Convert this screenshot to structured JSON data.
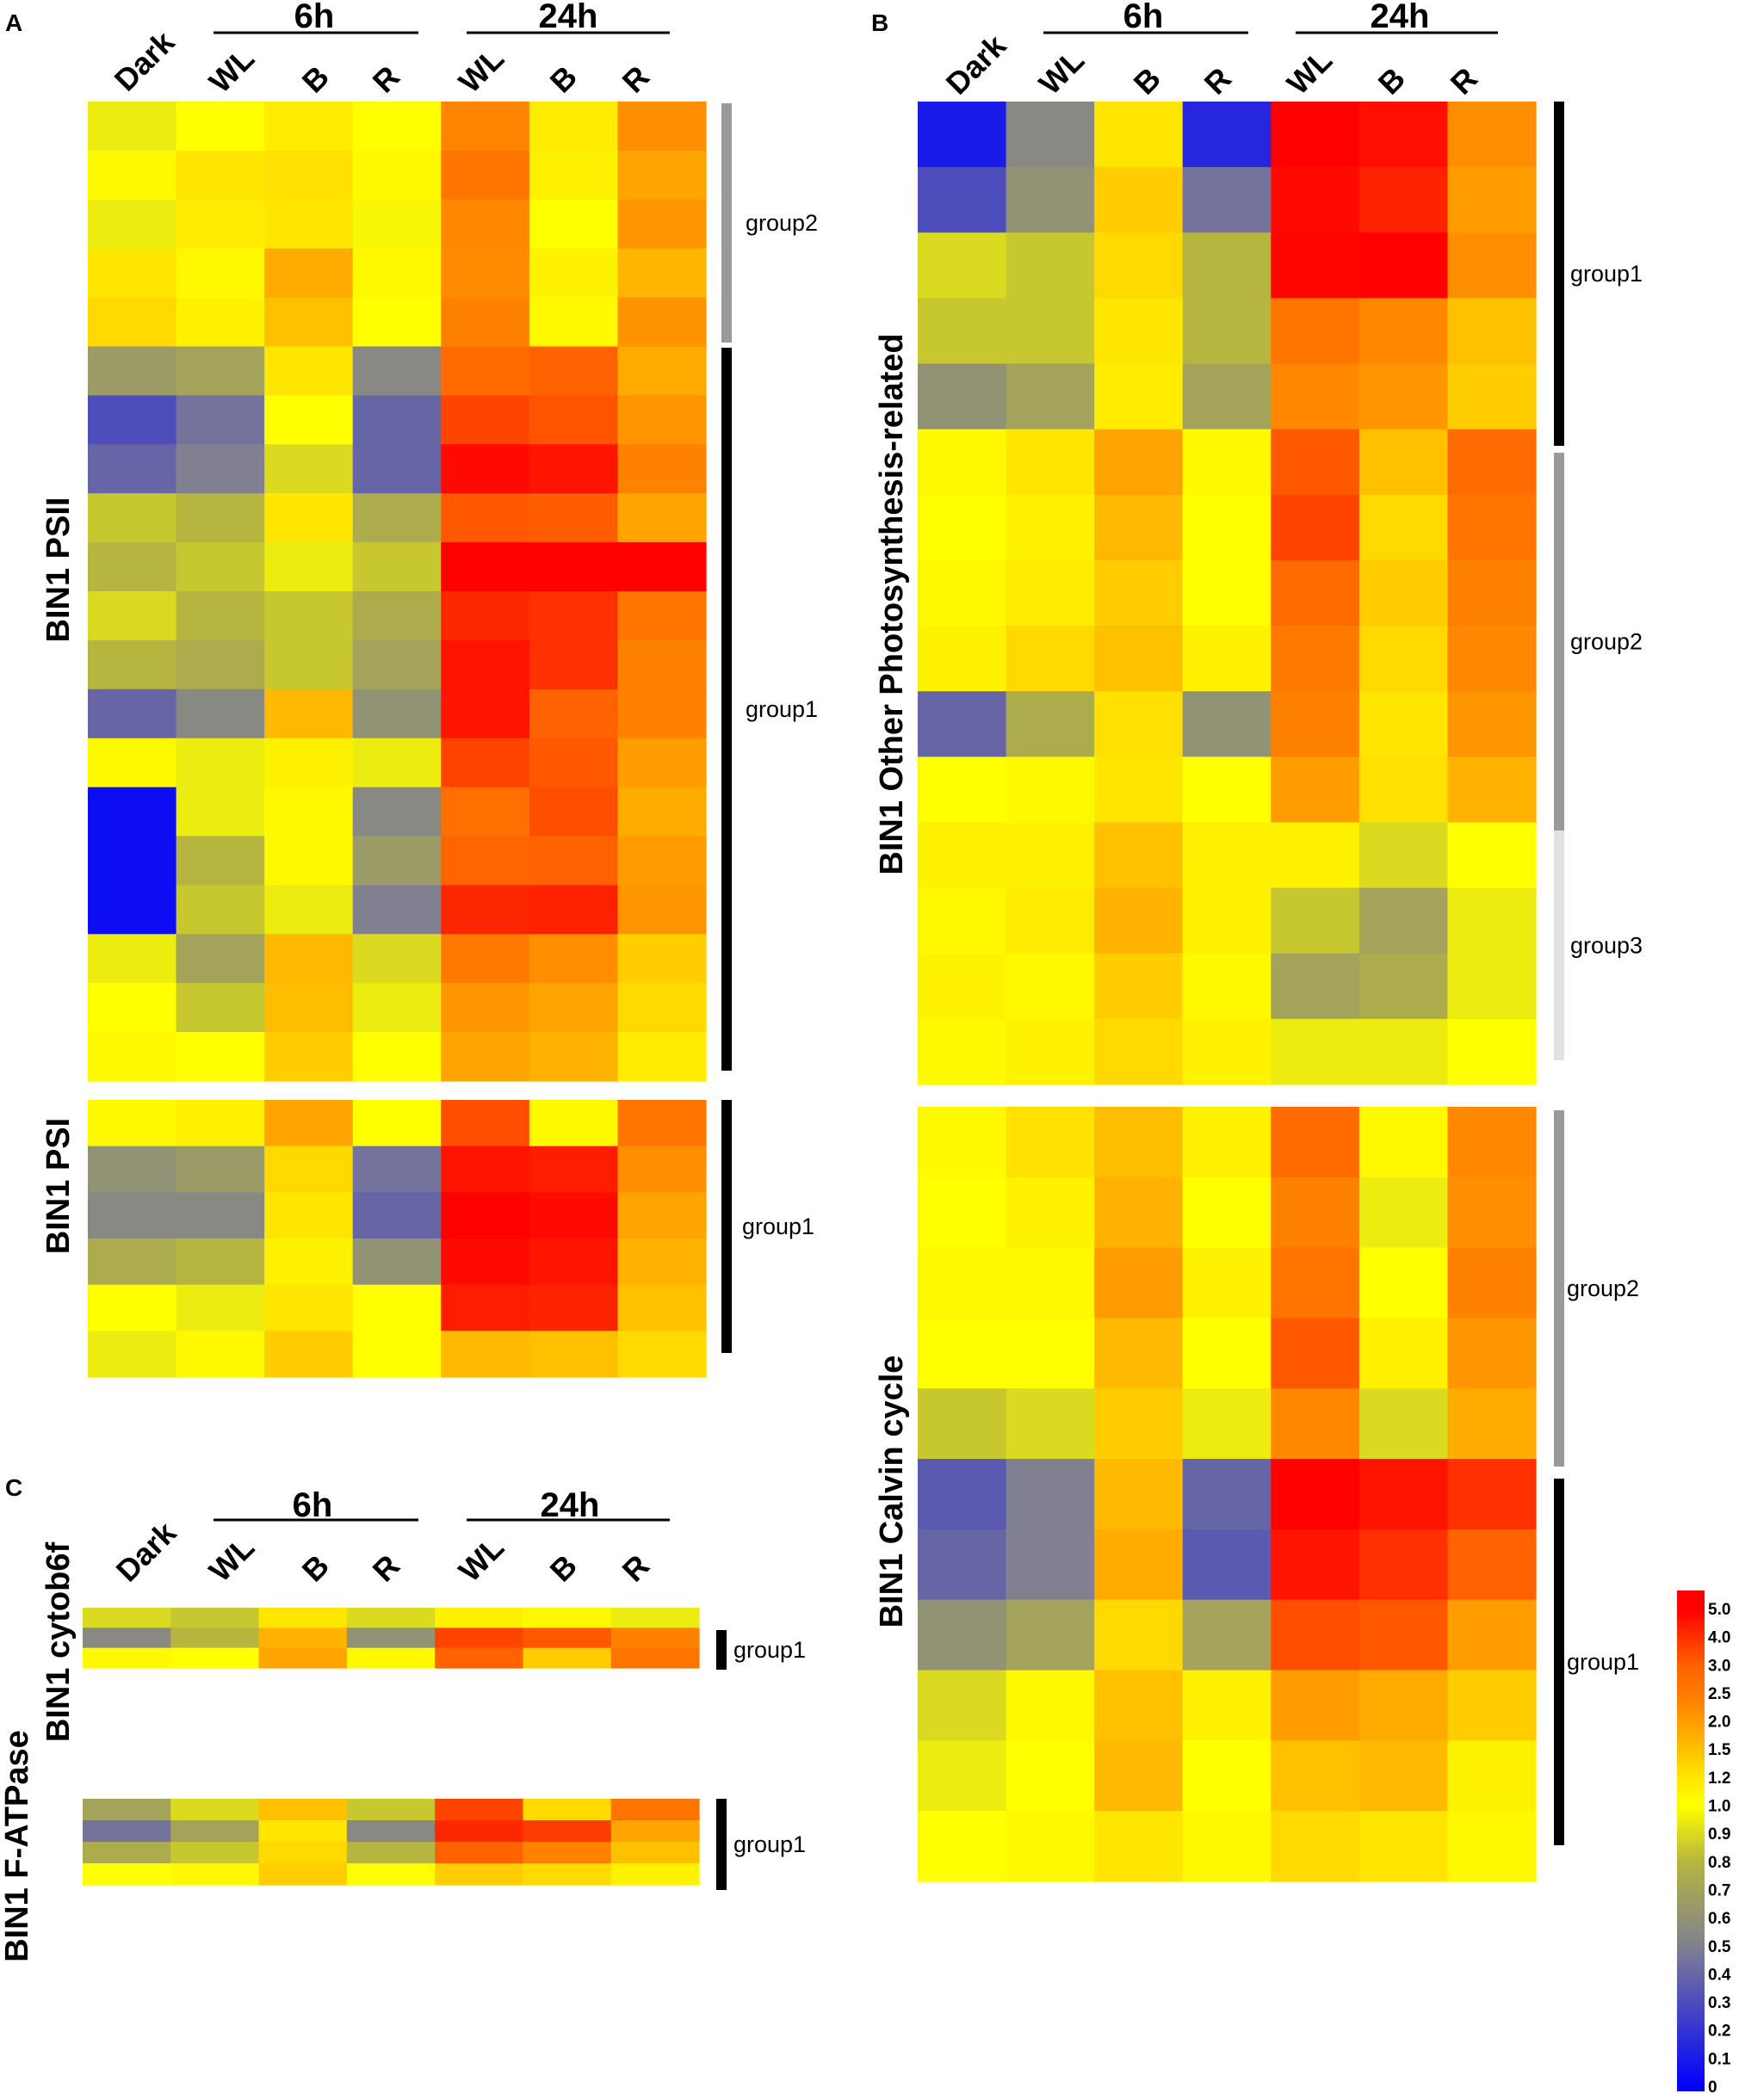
{
  "chart_data": {
    "type": "heatmap",
    "panel_letters": [
      "A",
      "B",
      "C"
    ],
    "columns": [
      "Dark",
      "WL",
      "B",
      "R",
      "WL",
      "B",
      "R"
    ],
    "time_groups": [
      {
        "label": "6h",
        "columns": [
          "WL",
          "B",
          "R"
        ]
      },
      {
        "label": "24h",
        "columns": [
          "WL",
          "B",
          "R"
        ]
      }
    ],
    "heatmaps": [
      {
        "panel": "A",
        "title": "BIN1 PSII",
        "groups": [
          {
            "label": "group2",
            "bar": "gray",
            "bands": [
              [
                0.95,
                1.0,
                1.15,
                1.0,
                2.35,
                1.15,
                2.2
              ],
              [
                1.05,
                1.2,
                1.25,
                1.05,
                2.6,
                1.1,
                1.9
              ],
              [
                0.95,
                1.15,
                1.2,
                0.98,
                2.3,
                1.0,
                2.1
              ],
              [
                1.2,
                1.05,
                1.8,
                1.05,
                2.25,
                1.1,
                1.65
              ],
              [
                1.3,
                1.1,
                1.5,
                1.0,
                2.4,
                1.05,
                2.15
              ]
            ]
          },
          {
            "label": "group1",
            "bar": "black",
            "bands": [
              [
                0.65,
                0.7,
                1.2,
                0.55,
                2.8,
                3.0,
                1.8
              ],
              [
                0.3,
                0.45,
                1.0,
                0.4,
                3.6,
                3.3,
                2.1
              ],
              [
                0.4,
                0.5,
                0.9,
                0.4,
                4.8,
                4.6,
                2.4
              ],
              [
                0.85,
                0.8,
                1.2,
                0.75,
                3.2,
                3.1,
                1.9
              ],
              [
                0.8,
                0.85,
                0.95,
                0.85,
                5.0,
                5.0,
                5.0
              ],
              [
                0.9,
                0.8,
                0.85,
                0.75,
                4.2,
                4.0,
                2.6
              ],
              [
                0.8,
                0.75,
                0.85,
                0.7,
                4.6,
                4.0,
                2.4
              ],
              [
                0.4,
                0.55,
                1.6,
                0.6,
                4.6,
                3.0,
                2.4
              ],
              [
                1.05,
                0.95,
                1.1,
                0.95,
                3.6,
                3.2,
                2.0
              ],
              [
                0.05,
                0.95,
                1.05,
                0.55,
                2.7,
                3.4,
                1.8
              ],
              [
                0.05,
                0.8,
                1.05,
                0.65,
                2.9,
                3.0,
                2.0
              ],
              [
                0.05,
                0.85,
                0.95,
                0.5,
                4.2,
                4.3,
                2.1
              ],
              [
                0.95,
                0.7,
                1.6,
                0.9,
                2.5,
                2.2,
                1.4
              ],
              [
                1.0,
                0.85,
                1.55,
                0.95,
                2.1,
                1.9,
                1.3
              ],
              [
                1.05,
                1.0,
                1.4,
                1.0,
                1.9,
                1.7,
                1.15
              ]
            ]
          }
        ]
      },
      {
        "panel": "A",
        "title": "BIN1 PSI",
        "groups": [
          {
            "label": "group1",
            "bar": "black",
            "bands": [
              [
                1.05,
                1.1,
                1.9,
                1.0,
                3.4,
                1.05,
                2.6
              ],
              [
                0.6,
                0.65,
                1.3,
                0.45,
                4.6,
                4.4,
                2.2
              ],
              [
                0.55,
                0.55,
                1.2,
                0.4,
                5.0,
                4.8,
                1.9
              ],
              [
                0.75,
                0.8,
                1.1,
                0.6,
                4.8,
                4.6,
                1.7
              ],
              [
                1.0,
                0.95,
                1.2,
                1.0,
                4.4,
                4.3,
                1.5
              ],
              [
                0.95,
                1.05,
                1.4,
                1.0,
                1.6,
                1.5,
                1.3
              ]
            ]
          }
        ]
      },
      {
        "panel": "B",
        "title": "BIN1 Other Photosynthesis-related",
        "groups": [
          {
            "label": "group1",
            "bar": "black",
            "bands": [
              [
                0.1,
                0.55,
                1.2,
                0.15,
                5.0,
                4.7,
                2.2
              ],
              [
                0.3,
                0.6,
                1.4,
                0.45,
                4.8,
                4.3,
                2.0
              ],
              [
                0.9,
                0.85,
                1.3,
                0.8,
                4.9,
                5.0,
                2.2
              ],
              [
                0.85,
                0.85,
                1.2,
                0.8,
                2.6,
                2.3,
                1.5
              ],
              [
                0.6,
                0.7,
                1.15,
                0.7,
                2.3,
                2.1,
                1.4
              ]
            ]
          },
          {
            "label": "group2",
            "bar": "gray",
            "bands": [
              [
                1.05,
                1.2,
                1.9,
                1.05,
                3.2,
                1.5,
                2.8
              ],
              [
                1.0,
                1.1,
                1.6,
                1.0,
                3.6,
                1.3,
                2.6
              ],
              [
                1.05,
                1.15,
                1.4,
                1.0,
                2.8,
                1.4,
                2.4
              ],
              [
                1.1,
                1.3,
                1.5,
                1.1,
                2.5,
                1.3,
                2.3
              ],
              [
                0.4,
                0.75,
                1.25,
                0.6,
                2.4,
                1.2,
                2.1
              ],
              [
                1.0,
                1.05,
                1.2,
                1.0,
                2.0,
                1.25,
                1.7
              ]
            ]
          },
          {
            "label": "group3",
            "bar": "light",
            "bands": [
              [
                1.1,
                1.1,
                1.5,
                1.1,
                1.1,
                0.9,
                1.0
              ],
              [
                1.05,
                1.15,
                1.7,
                1.1,
                0.85,
                0.7,
                0.95
              ],
              [
                1.1,
                1.05,
                1.4,
                1.05,
                0.7,
                0.75,
                0.95
              ],
              [
                1.05,
                1.1,
                1.3,
                1.1,
                0.95,
                0.95,
                1.0
              ]
            ]
          }
        ]
      },
      {
        "panel": "B",
        "title": "BIN1 Calvin cycle",
        "groups": [
          {
            "label": "group2",
            "bar": "gray",
            "bands": [
              [
                1.05,
                1.25,
                1.55,
                1.1,
                2.8,
                1.05,
                2.3
              ],
              [
                1.0,
                1.1,
                1.7,
                1.0,
                2.4,
                0.95,
                2.2
              ],
              [
                1.05,
                1.05,
                2.0,
                1.1,
                2.6,
                1.0,
                2.4
              ],
              [
                1.0,
                1.0,
                1.6,
                1.0,
                3.2,
                1.1,
                2.1
              ],
              [
                0.85,
                0.9,
                1.4,
                0.95,
                2.3,
                0.9,
                1.8
              ]
            ]
          },
          {
            "label": "group1",
            "bar": "black",
            "bands": [
              [
                0.35,
                0.5,
                1.6,
                0.4,
                5.0,
                4.6,
                4.0
              ],
              [
                0.4,
                0.5,
                1.8,
                0.35,
                4.6,
                4.0,
                3.0
              ],
              [
                0.6,
                0.7,
                1.3,
                0.7,
                3.4,
                3.2,
                2.0
              ],
              [
                0.9,
                1.05,
                1.5,
                1.1,
                2.0,
                1.8,
                1.4
              ],
              [
                0.95,
                1.0,
                1.6,
                1.0,
                1.5,
                1.6,
                1.1
              ],
              [
                1.0,
                1.05,
                1.2,
                1.05,
                1.3,
                1.2,
                1.05
              ]
            ]
          }
        ]
      },
      {
        "panel": "C",
        "title": "BIN1 cytob6f",
        "groups": [
          {
            "label": "group1",
            "bar": "black",
            "bands": [
              [
                0.9,
                0.85,
                1.2,
                0.9,
                1.1,
                1.05,
                0.95
              ],
              [
                0.55,
                0.8,
                1.7,
                0.6,
                3.6,
                3.2,
                2.4
              ],
              [
                1.05,
                1.0,
                1.9,
                1.05,
                3.0,
                1.4,
                2.6
              ]
            ]
          }
        ]
      },
      {
        "panel": "C",
        "title": "BIN1 F-ATPase",
        "groups": [
          {
            "label": "group1",
            "bar": "black",
            "bands": [
              [
                0.7,
                0.9,
                1.5,
                0.85,
                3.6,
                1.3,
                2.6
              ],
              [
                0.45,
                0.7,
                1.2,
                0.55,
                4.2,
                3.8,
                1.9
              ],
              [
                0.75,
                0.85,
                1.3,
                0.8,
                3.0,
                2.4,
                1.5
              ],
              [
                1.0,
                1.05,
                1.4,
                1.0,
                1.4,
                1.3,
                1.1
              ]
            ]
          }
        ]
      }
    ],
    "colorbar": {
      "ticks": [
        "5.0",
        "4.0",
        "3.0",
        "2.5",
        "2.0",
        "1.5",
        "1.2",
        "1.0",
        "0.9",
        "0.8",
        "0.7",
        "0.6",
        "0.5",
        "0.4",
        "0.3",
        "0.2",
        "0.1",
        "0"
      ],
      "stops": [
        {
          "value": 0,
          "color": "#0000ff"
        },
        {
          "value": 0.5,
          "color": "#808090"
        },
        {
          "value": 0.8,
          "color": "#b5b540"
        },
        {
          "value": 1.0,
          "color": "#ffff00"
        },
        {
          "value": 1.5,
          "color": "#ffc000"
        },
        {
          "value": 2.5,
          "color": "#ff7a00"
        },
        {
          "value": 5.0,
          "color": "#ff0000"
        }
      ]
    }
  }
}
